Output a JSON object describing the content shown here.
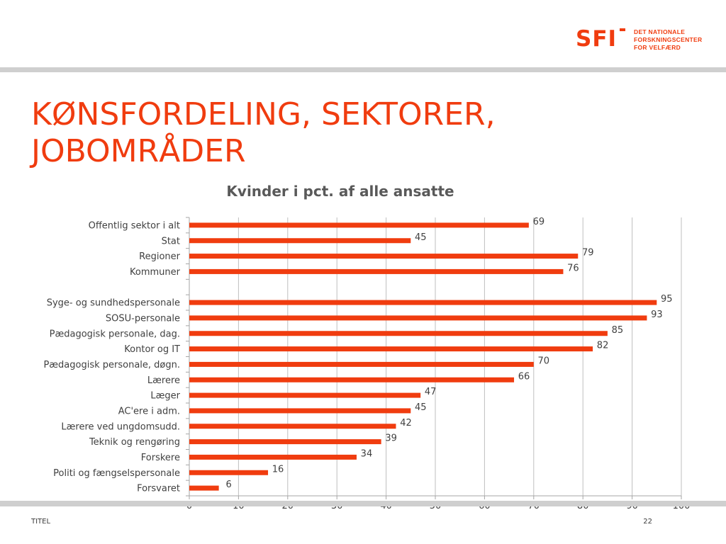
{
  "slide": {
    "title_lines": [
      "KØNSFORDELING, SEKTORER,",
      "JOBOMRÅDER"
    ],
    "footer_left": "TITEL",
    "page_number": "22"
  },
  "logo": {
    "mark": "SFI",
    "lines": [
      "DET NATIONALE",
      "FORSKNINGSCENTER",
      "FOR VELFÆRD"
    ]
  },
  "colors": {
    "accent": "#f03c0f",
    "bar": "#f03c0f",
    "grid": "#bfbfbf",
    "text": "#404040",
    "title_gray": "#595959"
  },
  "chart_data": {
    "type": "bar",
    "orientation": "horizontal",
    "title": "Kvinder i pct. af alle ansatte",
    "xlabel": "",
    "ylabel": "",
    "xlim": [
      0,
      100
    ],
    "x_ticks": [
      0,
      10,
      20,
      30,
      40,
      50,
      60,
      70,
      80,
      90,
      100
    ],
    "grid": "vertical",
    "legend": "none",
    "categories": [
      "Offentlig sektor i alt",
      "Stat",
      "Regioner",
      "Kommuner",
      "",
      "Syge- og sundhedspersonale",
      "SOSU-personale",
      "Pædagogisk personale, dag.",
      "Kontor og IT",
      "Pædagogisk personale, døgn.",
      "Lærere",
      "Læger",
      "AC'ere i adm.",
      "Lærere ved ungdomsudd.",
      "Teknik og rengøring",
      "Forskere",
      "Politi og fængselspersonale",
      "Forsvaret"
    ],
    "values": [
      69,
      45,
      79,
      76,
      null,
      95,
      93,
      85,
      82,
      70,
      66,
      47,
      45,
      42,
      39,
      34,
      16,
      6
    ],
    "data_labels": true
  }
}
